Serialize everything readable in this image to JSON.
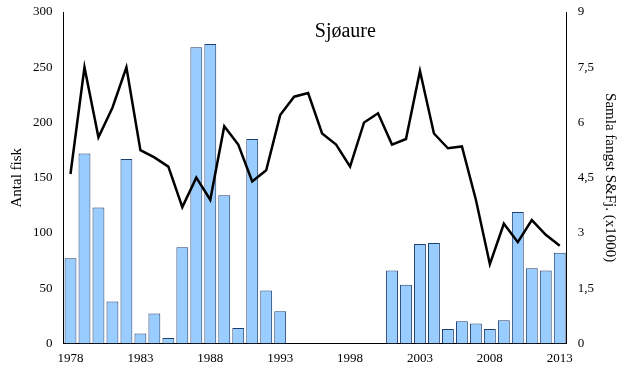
{
  "chart_data": {
    "type": "bar",
    "title": "Sjøaure",
    "y_label": "Antal fisk",
    "y2_label": "Samla fangst S&Fj. (x1000)",
    "categories": [
      "1978",
      null,
      null,
      null,
      null,
      "1983",
      null,
      null,
      null,
      null,
      "1988",
      null,
      null,
      null,
      null,
      "1993",
      null,
      null,
      null,
      null,
      "1998",
      null,
      null,
      null,
      null,
      "2003",
      null,
      null,
      null,
      null,
      "2008",
      null,
      null,
      null,
      null,
      "2013"
    ],
    "series": [
      {
        "type": "bar",
        "color": "#99ccff",
        "axis": "y",
        "values": [
          77,
          172,
          123,
          38,
          167,
          9,
          27,
          5,
          87,
          268,
          271,
          134,
          14,
          185,
          48,
          29,
          null,
          null,
          null,
          null,
          null,
          null,
          null,
          66,
          53,
          90,
          91,
          13,
          20,
          18,
          13,
          21,
          119,
          68,
          66,
          82
        ]
      },
      {
        "type": "line",
        "color": "#000000",
        "axis": "y2",
        "values": [
          4.6,
          7.5,
          5.6,
          6.4,
          7.5,
          5.25,
          5.05,
          4.8,
          3.7,
          4.5,
          3.9,
          5.9,
          5.4,
          4.4,
          4.7,
          6.2,
          6.7,
          6.8,
          5.7,
          5.4,
          4.8,
          6.0,
          6.25,
          5.4,
          5.55,
          7.4,
          5.7,
          5.3,
          5.35,
          3.9,
          2.15,
          3.25,
          2.75,
          3.35,
          2.95,
          2.65
        ]
      }
    ],
    "ylim": [
      0,
      300
    ],
    "yticks": [
      0,
      50,
      100,
      150,
      200,
      250,
      300
    ],
    "y2lim": [
      0,
      9
    ],
    "y2ticks": [
      0,
      {
        "value": 1.5,
        "label": "1,5"
      },
      3,
      {
        "value": 4.5,
        "label": "4,5"
      },
      6,
      {
        "value": 7.5,
        "label": "7,5"
      },
      9
    ],
    "grid": false
  }
}
